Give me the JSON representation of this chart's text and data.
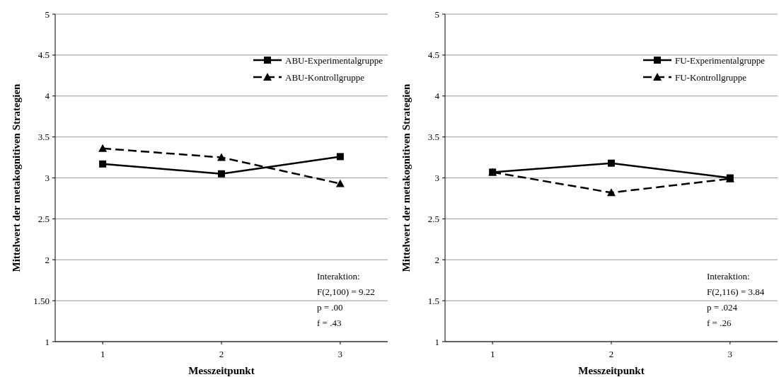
{
  "chart_data": [
    {
      "type": "line",
      "xlabel": "Messzeitpunkt",
      "ylabel": "Mittelwert der metakognitiven Strategien",
      "categories": [
        "1",
        "2",
        "3"
      ],
      "ylim": [
        1,
        5
      ],
      "yticks": [
        1,
        {
          "value": 1.5,
          "label": "1.50"
        },
        2,
        2.5,
        3,
        3.5,
        4,
        4.5,
        5
      ],
      "grid": "y",
      "legend": "top right",
      "series": [
        {
          "name": "ABU-Experimentalgruppe",
          "color": "#000000",
          "marker": "square",
          "line_style": "solid",
          "values": [
            3.17,
            3.05,
            3.26
          ]
        },
        {
          "name": "ABU-Kontrollgruppe",
          "color": "#000000",
          "marker": "triangle",
          "line_style": "dashed",
          "values": [
            3.36,
            3.25,
            2.93
          ]
        }
      ],
      "annotations": [
        "Interaktion:",
        "F(2,100) = 9.22",
        "p = .00",
        "f = .43"
      ]
    },
    {
      "type": "line",
      "xlabel": "Messzeitpunkt",
      "ylabel": "Mittelwert der metakognitiven Strategien",
      "categories": [
        "1",
        "2",
        "3"
      ],
      "ylim": [
        1,
        5
      ],
      "yticks": [
        1,
        1.5,
        2,
        2.5,
        3,
        3.5,
        4,
        4.5,
        5
      ],
      "grid": "y",
      "legend": "top right",
      "series": [
        {
          "name": "FU-Experimentalgruppe",
          "color": "#000000",
          "marker": "square",
          "line_style": "solid",
          "values": [
            3.07,
            3.18,
            3.0
          ]
        },
        {
          "name": "FU-Kontrollgruppe",
          "color": "#000000",
          "marker": "triangle",
          "line_style": "dashed",
          "values": [
            3.07,
            2.82,
            2.99
          ]
        }
      ],
      "annotations": [
        "Interaktion:",
        "F(2,116) = 3.84",
        "p = .024",
        "f = .26"
      ]
    }
  ]
}
